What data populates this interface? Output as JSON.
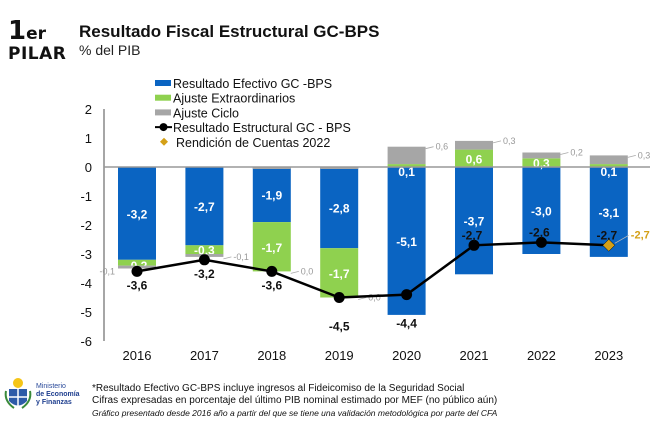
{
  "header": {
    "pilar_number": "1",
    "pilar_suffix": "er",
    "pilar_label": "PILAR",
    "title": "Resultado Fiscal Estructural GC-BPS",
    "subtitle": "% del PIB"
  },
  "chart_data": {
    "type": "bar",
    "title": "Resultado Fiscal Estructural GC-BPS",
    "subtitle": "% del PIB",
    "categories": [
      "2016",
      "2017",
      "2018",
      "2019",
      "2020",
      "2021",
      "2022",
      "2023"
    ],
    "ylim": [
      -6,
      2
    ],
    "yticks": [
      "2",
      "1",
      "0",
      "-1",
      "-2",
      "-3",
      "-4",
      "-5",
      "-6"
    ],
    "grid": false,
    "legend_position": "top",
    "series": [
      {
        "name": "Resultado Efectivo GC -BPS",
        "kind": "stacked-bar",
        "color": "#0A64C2",
        "values": [
          -3.2,
          -2.7,
          -1.9,
          -2.8,
          -5.1,
          -3.7,
          -3.0,
          -3.1
        ],
        "labels": [
          "-3,2",
          "-2,7",
          "-1,9",
          "-2,8",
          "-5,1",
          "-3,7",
          "-3,0",
          "-3,1"
        ]
      },
      {
        "name": "Ajuste Extraordinarios",
        "kind": "stacked-bar",
        "color": "#8FD14F",
        "values": [
          -0.2,
          -0.3,
          -1.7,
          -1.7,
          0.1,
          0.6,
          0.3,
          0.1
        ],
        "labels": [
          "-0,2",
          "-0,3",
          "-1,7",
          "-1,7",
          "0,1",
          "0,6",
          "0,3",
          "0,1"
        ]
      },
      {
        "name": "Ajuste Ciclo",
        "kind": "stacked-bar",
        "color": "#A6A6A6",
        "values": [
          -0.1,
          -0.1,
          0.0,
          0.0,
          0.6,
          0.3,
          0.2,
          0.3
        ],
        "labels": [
          "-0,1",
          "-0,1",
          "0,0",
          "0,0",
          "0,6",
          "0,3",
          "0,2",
          "0,3"
        ]
      },
      {
        "name": "Resultado Estructural GC - BPS",
        "kind": "line",
        "color": "#000000",
        "values": [
          -3.6,
          -3.2,
          -3.6,
          -4.5,
          -4.4,
          -2.7,
          -2.6,
          -2.7
        ],
        "labels": [
          "-3,6",
          "-3,2",
          "-3,6",
          "-4,5",
          "-4,4",
          "-2,7",
          "-2,6",
          "-2,7"
        ]
      },
      {
        "name": "Rendición de Cuentas 2022",
        "kind": "point",
        "color": "#D4A017",
        "category": "2023",
        "value": -2.7,
        "label": "-2,7"
      }
    ]
  },
  "footer": {
    "ministry_line1": "Ministerio",
    "ministry_line2": "de Economía",
    "ministry_line3": "y Finanzas",
    "note1": "*Resultado Efectivo GC-BPS incluye ingresos al Fideicomiso de la Seguridad Social",
    "note2": "Cifras expresadas en porcentaje del último PIB nominal estimado por MEF (no público aún)",
    "note3": "Gráfico presentado desde 2016 año a partir del que se tiene una validación metodológica por parte del CFA"
  }
}
